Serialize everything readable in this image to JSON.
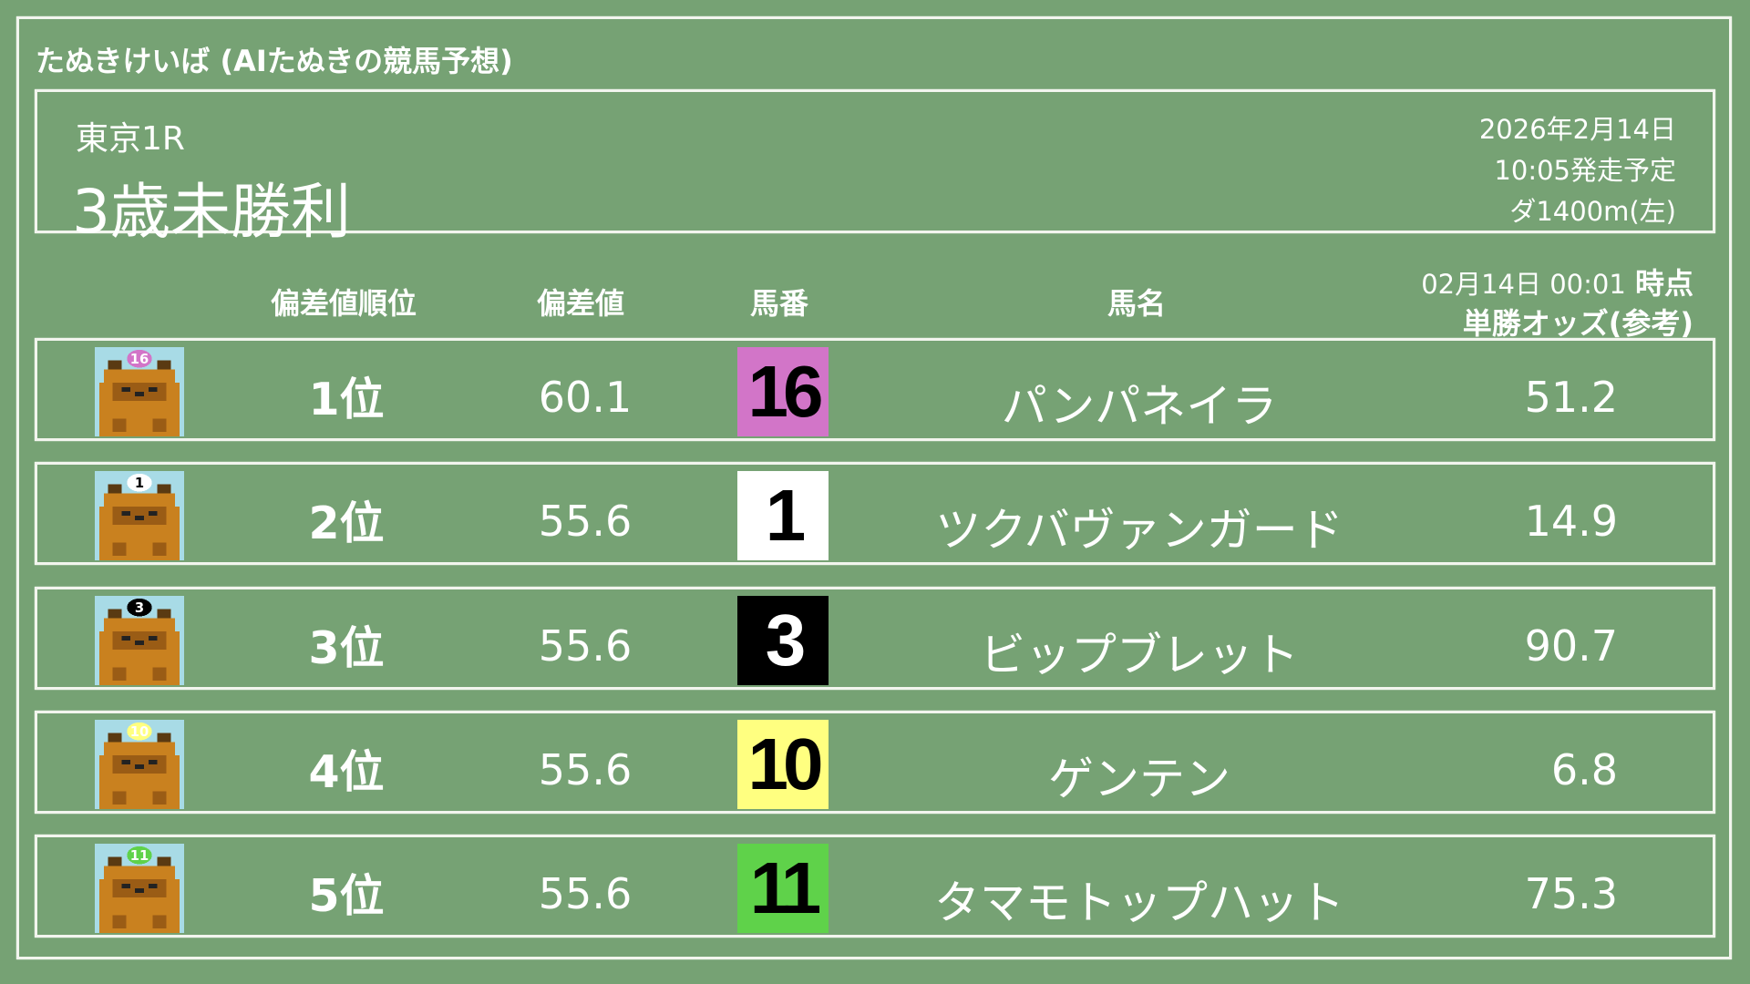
{
  "app_title": "たぬきけいば (AIたぬきの競馬予想)",
  "race": {
    "venue": "東京1R",
    "name": "3歳未勝利",
    "date": "2026年2月14日",
    "start": "10:05発走予定",
    "course": "ダ1400m(左)"
  },
  "columns": {
    "rank": "偏差値順位",
    "score": "偏差値",
    "number": "馬番",
    "name": "馬名",
    "odds_time": "02月14日 00:01",
    "odds_time_suffix": "時点",
    "odds": "単勝オッズ(参考)"
  },
  "rows": [
    {
      "rank": "1位",
      "score": "60.1",
      "number": "16",
      "name": "パンパネイラ",
      "odds": "51.2",
      "box_color": "#d275c8",
      "text_color": "#000000",
      "icon": "tanuki-icon"
    },
    {
      "rank": "2位",
      "score": "55.6",
      "number": "1",
      "name": "ツクバヴァンガード",
      "odds": "14.9",
      "box_color": "#ffffff",
      "text_color": "#000000",
      "icon": "tanuki-icon"
    },
    {
      "rank": "3位",
      "score": "55.6",
      "number": "3",
      "name": "ビップブレット",
      "odds": "90.7",
      "box_color": "#000000",
      "text_color": "#ffffff",
      "icon": "tanuki-icon"
    },
    {
      "rank": "4位",
      "score": "55.6",
      "number": "10",
      "name": "ゲンテン",
      "odds": "6.8",
      "box_color": "#ffff80",
      "text_color": "#000000",
      "icon": "tanuki-icon"
    },
    {
      "rank": "5位",
      "score": "55.6",
      "number": "11",
      "name": "タマモトップハット",
      "odds": "75.3",
      "box_color": "#5fd24a",
      "text_color": "#000000",
      "icon": "tanuki-icon"
    }
  ],
  "colors": {
    "background": "#76a274",
    "chalk": "#f2f5ee"
  }
}
